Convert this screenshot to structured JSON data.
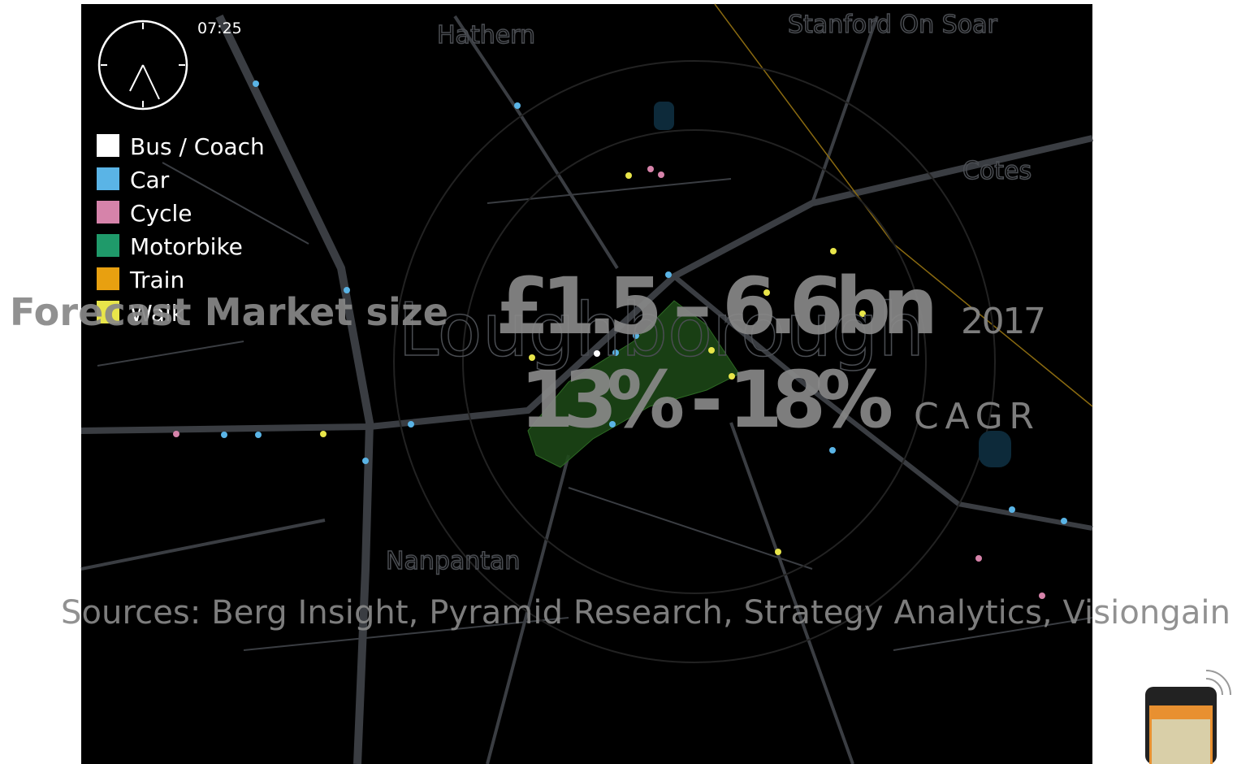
{
  "clock": {
    "time": "07:25"
  },
  "legend": [
    {
      "label": "Bus / Coach",
      "color": "#ffffff"
    },
    {
      "label": "Car",
      "color": "#5ab4e6"
    },
    {
      "label": "Cycle",
      "color": "#d683aa"
    },
    {
      "label": "Motorbike",
      "color": "#1f9a6a"
    },
    {
      "label": "Train",
      "color": "#e8a010"
    },
    {
      "label": "Walk",
      "color": "#e8e54a"
    }
  ],
  "places": [
    "Hathern",
    "Stanford On Soar",
    "Cotes",
    "Loughborough",
    "Nanpantan"
  ],
  "headline": {
    "label": "Forecast Market size",
    "range": "£1.5 – 6.6bn",
    "year": "2017",
    "growth": "13% - 18%",
    "growth_label": "CAGR"
  },
  "sources": "Sources: Berg Insight, Pyramid Research, Strategy Analytics, Visiongain"
}
